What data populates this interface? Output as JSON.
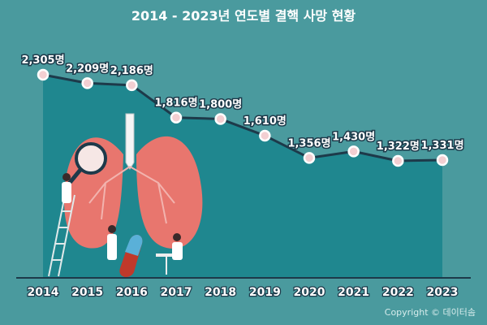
{
  "title": "2014 - 2023년 연도별 결핵 사망 현황",
  "copyright": "Copyright © 데이터솜",
  "colors": {
    "background": "#4a9a9e",
    "area": "#1f878f",
    "line": "#1d3a4a",
    "marker_fill": "#f3cfd2",
    "lung": "#e8766e",
    "label_text": "#ffffff"
  },
  "chart_data": {
    "type": "line",
    "title": "2014 - 2023년 연도별 결핵 사망 현황",
    "xlabel": "",
    "ylabel": "",
    "ylim": [
      0,
      2500
    ],
    "categories": [
      "2014",
      "2015",
      "2016",
      "2017",
      "2018",
      "2019",
      "2020",
      "2021",
      "2022",
      "2023"
    ],
    "values": [
      2305,
      2209,
      2186,
      1816,
      1800,
      1610,
      1356,
      1430,
      1322,
      1331
    ],
    "data_labels": [
      "2,305명",
      "2,209명",
      "2,186명",
      "1,816명",
      "1,800명",
      "1,610명",
      "1,356명",
      "1,430명",
      "1,322명",
      "1,331명"
    ],
    "grid": false,
    "legend": "none"
  }
}
